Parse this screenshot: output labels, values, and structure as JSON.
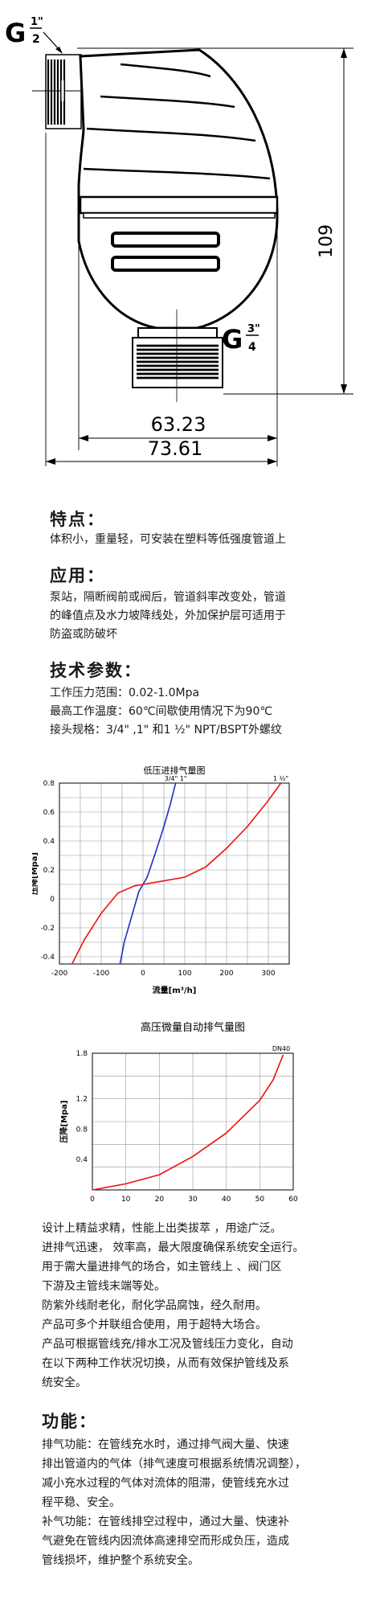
{
  "drawing": {
    "inlet_thread_label": "G",
    "inlet_fraction_num": "1\"",
    "inlet_fraction_den": "2",
    "outlet_thread_label": "G",
    "outlet_fraction_num": "3\"",
    "outlet_fraction_den": "4",
    "height_dim": "109",
    "inner_width_dim": "63.23",
    "outer_width_dim": "73.61"
  },
  "features": {
    "heading": "特点：",
    "text": "体积小，重量轻，可安装在塑料等低强度管道上"
  },
  "application": {
    "heading": "应用：",
    "lines": [
      "泵站，隔断阀前或阀后，管道斜率改变处，管道",
      "的峰值点及水力坡降线处，外加保护层可适用于",
      "防盗或防破坏"
    ]
  },
  "specs": {
    "heading": "技术参数：",
    "lines": [
      "工作压力范围：0.02-1.0Mpa",
      "最高工作温度：60℃间歇使用情况下为90℃",
      "接头规格：3/4\" ,1\" 和1 ½\"  NPT/BSPT外螺纹"
    ]
  },
  "chart_data": [
    {
      "type": "line",
      "title": "低压进排气量图",
      "xlabel": "流量[m³/h]",
      "ylabel": "压降[Mpa]",
      "xlim": [
        -200,
        350
      ],
      "ylim": [
        -0.45,
        0.8
      ],
      "xticks": [
        -200,
        -100,
        0,
        100,
        200,
        300
      ],
      "yticks": [
        0.8,
        0.6,
        0.4,
        0.2,
        0,
        -0.2,
        -0.4
      ],
      "ytick_labels": [
        "0.8",
        "0.6",
        "0.4",
        "0.2",
        "0",
        "-0.2",
        "-0.4"
      ],
      "grid": true,
      "series": [
        {
          "name": "3/4\" 1\"",
          "color": "#1f2fbf",
          "points": [
            [
              -55,
              -0.45
            ],
            [
              -45,
              -0.3
            ],
            [
              -30,
              -0.15
            ],
            [
              -10,
              0.05
            ],
            [
              0,
              0.1
            ],
            [
              10,
              0.15
            ],
            [
              30,
              0.32
            ],
            [
              50,
              0.5
            ],
            [
              65,
              0.65
            ],
            [
              78,
              0.8
            ]
          ]
        },
        {
          "name": "1 ½\"",
          "color": "#ee1111",
          "points": [
            [
              -170,
              -0.45
            ],
            [
              -140,
              -0.28
            ],
            [
              -100,
              -0.1
            ],
            [
              -60,
              0.04
            ],
            [
              -20,
              0.09
            ],
            [
              0,
              0.1
            ],
            [
              40,
              0.12
            ],
            [
              100,
              0.15
            ],
            [
              150,
              0.22
            ],
            [
              200,
              0.35
            ],
            [
              250,
              0.5
            ],
            [
              300,
              0.68
            ],
            [
              330,
              0.8
            ]
          ]
        }
      ]
    },
    {
      "type": "line",
      "title": "高压微量自动排气量图",
      "xlabel": "",
      "ylabel": "压降[Mpa]",
      "xlim": [
        0,
        60
      ],
      "ylim": [
        0,
        1.8
      ],
      "xticks": [
        0,
        10,
        20,
        30,
        40,
        50,
        60
      ],
      "yticks": [
        1.8,
        1.2,
        0.8,
        0.4
      ],
      "ytick_labels": [
        "1.8",
        "1.2",
        "0.8",
        "0.4"
      ],
      "grid": true,
      "series": [
        {
          "name": "DN40",
          "color": "#ee1111",
          "points": [
            [
              0,
              0
            ],
            [
              10,
              0.08
            ],
            [
              20,
              0.2
            ],
            [
              30,
              0.44
            ],
            [
              40,
              0.75
            ],
            [
              50,
              1.18
            ],
            [
              54,
              1.45
            ],
            [
              57,
              1.78
            ]
          ]
        }
      ]
    }
  ],
  "description": {
    "lines": [
      "设计上精益求精，性能上出类拔萃 ，用途广泛。",
      "进排气迅速， 效率高，最大限度确保系统安全运行。",
      "用于需大量进排气的场合，如主管线上 、阀门区",
      "下游及主管线末端等处。",
      "防紫外线耐老化，耐化学品腐蚀，经久耐用。",
      "产品可多个并联组合使用，用于超特大场合。",
      "产品可根据管线充/排水工况及管线压力变化，自动",
      "在以下两种工作状况切换，从而有效保护管线及系",
      "统安全。"
    ]
  },
  "functions": {
    "heading": "功能：",
    "lines": [
      "排气功能：在管线充水时，通过排气阀大量、快速",
      "排出管道内的气体（排气速度可根据系统情况调整），",
      "减小充水过程的气体对流体的阻滞，使管线充水过",
      "程平稳、安全。",
      "补气功能：在管线排空过程中，通过大量、快速补",
      "气避免在管线内因流体高速排空而形成负压，造成",
      "管线损坏，维护整个系统安全。"
    ]
  }
}
